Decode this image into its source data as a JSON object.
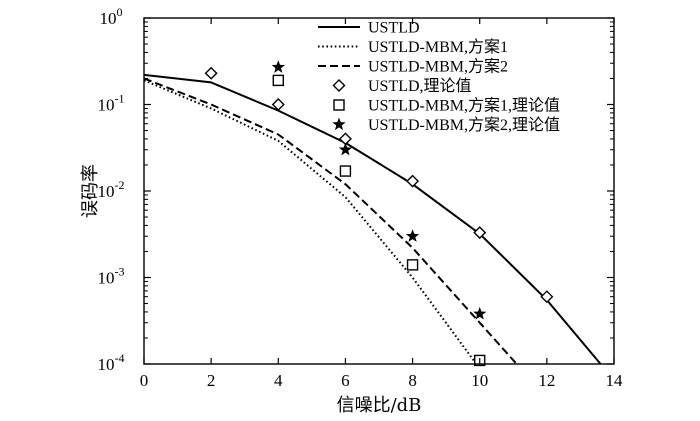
{
  "chart_data": {
    "type": "line",
    "xlabel": "信噪比/dB",
    "ylabel": "误码率",
    "xlim": [
      0,
      14
    ],
    "ylim": [
      0.0001,
      1
    ],
    "yscale": "log",
    "x_ticks": [
      0,
      2,
      4,
      6,
      8,
      10,
      12,
      14
    ],
    "y_ticks": [
      {
        "base": "10",
        "exp": "0"
      },
      {
        "base": "10",
        "exp": "-1"
      },
      {
        "base": "10",
        "exp": "-2"
      },
      {
        "base": "10",
        "exp": "-3"
      },
      {
        "base": "10",
        "exp": "-4"
      }
    ],
    "legend_position": "top-right",
    "series": [
      {
        "name": "USTLD",
        "style": "solid-line",
        "x": [
          0,
          2,
          4,
          6,
          8,
          10,
          12,
          13.6
        ],
        "y": [
          0.22,
          0.18,
          0.085,
          0.036,
          0.012,
          0.0032,
          0.00055,
          0.0001
        ]
      },
      {
        "name": "USTLD-MBM,方案1",
        "style": "dotted-line",
        "x": [
          0,
          2,
          4,
          6,
          8,
          9.9
        ],
        "y": [
          0.19,
          0.09,
          0.038,
          0.0085,
          0.001,
          0.0001
        ]
      },
      {
        "name": "USTLD-MBM,方案2",
        "style": "dashed-line",
        "x": [
          0,
          2,
          4,
          6,
          8,
          10,
          11.1
        ],
        "y": [
          0.2,
          0.1,
          0.045,
          0.012,
          0.0022,
          0.0003,
          0.0001
        ]
      },
      {
        "name": "USTLD,理论值",
        "style": "diamond-marker",
        "x": [
          2,
          4,
          6,
          8,
          10,
          12
        ],
        "y": [
          0.23,
          0.1,
          0.04,
          0.013,
          0.0033,
          0.0006
        ]
      },
      {
        "name": "USTLD-MBM,方案1,理论值",
        "style": "square-marker",
        "x": [
          4,
          6,
          8,
          10
        ],
        "y": [
          0.19,
          0.017,
          0.0014,
          0.00011
        ]
      },
      {
        "name": "USTLD-MBM,方案2,理论值",
        "style": "star-marker",
        "x": [
          4,
          6,
          8,
          10
        ],
        "y": [
          0.27,
          0.03,
          0.003,
          0.00038
        ]
      }
    ]
  }
}
